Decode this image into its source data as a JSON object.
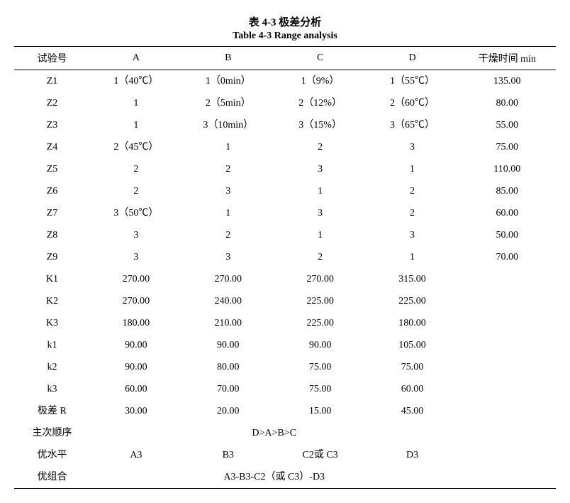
{
  "titles": {
    "zh": "表 4-3  极差分析",
    "en": "Table 4-3 Range analysis"
  },
  "headers": {
    "trial": "试验号",
    "A": "A",
    "B": "B",
    "C": "C",
    "D": "D",
    "time": "干燥时间 min"
  },
  "rows": [
    {
      "id": "Z1",
      "a": "1（40℃）",
      "b": "1（0min）",
      "c": "1（9%）",
      "d": "1（55℃）",
      "t": "135.00"
    },
    {
      "id": "Z2",
      "a": "1",
      "b": "2（5min）",
      "c": "2（12%）",
      "d": "2（60℃）",
      "t": "80.00"
    },
    {
      "id": "Z3",
      "a": "1",
      "b": "3（10min）",
      "c": "3（15%）",
      "d": "3（65℃）",
      "t": "55.00"
    },
    {
      "id": "Z4",
      "a": "2（45℃）",
      "b": "1",
      "c": "2",
      "d": "3",
      "t": "75.00"
    },
    {
      "id": "Z5",
      "a": "2",
      "b": "2",
      "c": "3",
      "d": "1",
      "t": "110.00"
    },
    {
      "id": "Z6",
      "a": "2",
      "b": "3",
      "c": "1",
      "d": "2",
      "t": "85.00"
    },
    {
      "id": "Z7",
      "a": "3（50℃）",
      "b": "1",
      "c": "3",
      "d": "2",
      "t": "60.00"
    },
    {
      "id": "Z8",
      "a": "3",
      "b": "2",
      "c": "1",
      "d": "3",
      "t": "50.00"
    },
    {
      "id": "Z9",
      "a": "3",
      "b": "3",
      "c": "2",
      "d": "1",
      "t": "70.00"
    },
    {
      "id": "K1",
      "a": "270.00",
      "b": "270.00",
      "c": "270.00",
      "d": "315.00",
      "t": ""
    },
    {
      "id": "K2",
      "a": "270.00",
      "b": "240.00",
      "c": "225.00",
      "d": "225.00",
      "t": ""
    },
    {
      "id": "K3",
      "a": "180.00",
      "b": "210.00",
      "c": "225.00",
      "d": "180.00",
      "t": ""
    },
    {
      "id": "k1",
      "a": "90.00",
      "b": "90.00",
      "c": "90.00",
      "d": "105.00",
      "t": ""
    },
    {
      "id": "k2",
      "a": "90.00",
      "b": "80.00",
      "c": "75.00",
      "d": "75.00",
      "t": ""
    },
    {
      "id": "k3",
      "a": "60.00",
      "b": "70.00",
      "c": "75.00",
      "d": "60.00",
      "t": ""
    },
    {
      "id": "极差 R",
      "a": "30.00",
      "b": "20.00",
      "c": "15.00",
      "d": "45.00",
      "t": ""
    }
  ],
  "order_row": {
    "label": "主次顺序",
    "value": "D>A>B>C"
  },
  "best_level": {
    "label": "优水平",
    "a": "A3",
    "b": "B3",
    "c": "C2或 C3",
    "d": "D3"
  },
  "best_combo": {
    "label": "优组合",
    "value": "A3-B3-C2（或 C3）-D3"
  }
}
